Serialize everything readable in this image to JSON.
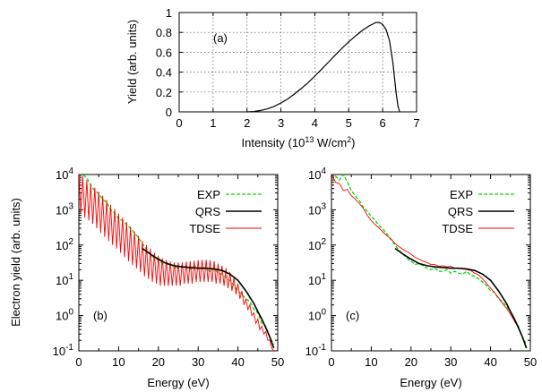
{
  "chart_data": [
    {
      "id": "a",
      "type": "line",
      "panel_label": "(a)",
      "xlabel": "Intensity (10",
      "xlabel_sup": "13",
      "xlabel_mid": " W/cm",
      "xlabel_sup2": "2",
      "xlabel_end": ")",
      "ylabel": "Yield (arb. units)",
      "xlim": [
        0,
        7
      ],
      "ylim": [
        0,
        1
      ],
      "xticks": [
        0,
        1,
        2,
        3,
        4,
        5,
        6,
        7
      ],
      "yticks": [
        0,
        0.2,
        0.4,
        0.6,
        0.8,
        1
      ],
      "ytick_labels": [
        "0",
        "0.2",
        "0.4",
        "0.6",
        "0.8",
        "1"
      ],
      "grid": true,
      "series": [
        {
          "color": "#000000",
          "x": [
            2.0,
            2.2,
            2.4,
            2.6,
            2.8,
            3.0,
            3.2,
            3.4,
            3.6,
            3.8,
            4.0,
            4.2,
            4.4,
            4.6,
            4.8,
            5.0,
            5.2,
            5.4,
            5.6,
            5.8,
            5.9,
            6.0,
            6.1,
            6.2,
            6.3,
            6.35,
            6.4,
            6.45,
            6.5
          ],
          "y": [
            0.0,
            0.004,
            0.014,
            0.03,
            0.055,
            0.09,
            0.13,
            0.18,
            0.235,
            0.295,
            0.36,
            0.43,
            0.5,
            0.57,
            0.64,
            0.705,
            0.765,
            0.82,
            0.865,
            0.9,
            0.9,
            0.88,
            0.83,
            0.72,
            0.5,
            0.34,
            0.18,
            0.06,
            0.0
          ]
        }
      ]
    },
    {
      "id": "b",
      "type": "line",
      "panel_label": "(b)",
      "xlabel": "Energy (eV)",
      "ylabel": "Electron yield (arb. units)",
      "xlim": [
        0,
        50
      ],
      "ylim": [
        0.1,
        10000
      ],
      "yscale": "log",
      "xticks": [
        0,
        10,
        20,
        30,
        40,
        50
      ],
      "ytick_base": "10",
      "ytick_exponents": [
        "-1",
        "0",
        "1",
        "2",
        "3",
        "4"
      ],
      "legend_placement": "top-right",
      "series": [
        {
          "name": "EXP",
          "color": "#00dd00",
          "x": [
            0,
            1,
            2,
            3,
            4,
            5,
            6,
            7,
            8,
            9,
            10,
            11,
            12,
            13,
            14,
            15,
            16,
            17,
            18,
            19,
            20,
            21,
            22,
            23,
            24,
            25,
            26,
            27,
            28,
            29,
            30,
            31,
            32,
            33,
            34,
            35,
            36,
            37,
            38,
            39,
            40,
            41,
            42,
            43,
            44,
            45,
            46,
            47,
            48,
            49
          ],
          "y": [
            12000,
            10000,
            8000,
            5000,
            3500,
            2800,
            2000,
            1600,
            1000,
            800,
            550,
            500,
            380,
            300,
            220,
            160,
            110,
            75,
            55,
            42,
            38,
            30,
            32,
            28,
            24,
            22,
            26,
            24,
            20,
            26,
            22,
            24,
            20,
            18,
            22,
            16,
            15,
            12,
            10,
            7,
            5,
            4,
            3,
            2.5,
            1.5,
            1.2,
            0.6,
            0.5,
            0.25,
            0.15
          ]
        },
        {
          "name": "QRS",
          "color": "#000000",
          "x": [
            16,
            18,
            20,
            22,
            24,
            26,
            28,
            30,
            32,
            34,
            36,
            38,
            40,
            42,
            44,
            45,
            46,
            47,
            48,
            49
          ],
          "y": [
            80,
            55,
            40,
            30,
            26,
            24,
            23,
            22,
            22,
            21,
            19,
            15,
            10,
            5,
            2.2,
            1.3,
            0.8,
            0.45,
            0.25,
            0.12
          ]
        },
        {
          "name": "TDSE",
          "color": "#ff0000",
          "x": [
            0,
            0.5,
            1,
            1.5,
            2,
            2.5,
            3,
            3.5,
            4,
            4.5,
            5,
            5.5,
            6,
            6.5,
            7,
            7.5,
            8,
            8.5,
            9,
            9.5,
            10,
            10.5,
            11,
            11.5,
            12,
            12.5,
            13,
            13.5,
            14,
            14.5,
            15,
            15.5,
            16,
            16.5,
            17,
            17.5,
            18,
            18.5,
            19,
            19.5,
            20,
            20.5,
            21,
            21.5,
            22,
            22.5,
            23,
            23.5,
            24,
            24.5,
            25,
            25.5,
            26,
            26.5,
            27,
            27.5,
            28,
            28.5,
            29,
            29.5,
            30,
            30.5,
            31,
            31.5,
            32,
            32.5,
            33,
            33.5,
            34,
            34.5,
            35,
            35.5,
            36,
            36.5,
            37,
            37.5,
            38,
            38.5,
            39,
            39.5,
            40,
            40.5,
            41,
            41.5,
            42,
            42.5,
            43,
            43.5,
            44,
            44.5,
            45,
            45.5,
            46,
            46.5,
            47,
            47.5,
            48,
            48.5,
            49
          ],
          "y": [
            14000,
            800,
            9000,
            600,
            7000,
            500,
            5500,
            400,
            4200,
            300,
            3300,
            220,
            2500,
            170,
            1900,
            130,
            1400,
            100,
            1050,
            80,
            780,
            60,
            600,
            45,
            450,
            35,
            330,
            27,
            240,
            22,
            180,
            17,
            130,
            13,
            100,
            11,
            80,
            9,
            60,
            8,
            50,
            7,
            42,
            7,
            38,
            7,
            34,
            7,
            32,
            7,
            32,
            7,
            32,
            8,
            34,
            8,
            35,
            8,
            36,
            9,
            37,
            9,
            38,
            9,
            38,
            9,
            37,
            9,
            35,
            8,
            30,
            8,
            26,
            7,
            22,
            6,
            17,
            5,
            12,
            4,
            8,
            3,
            5,
            2,
            3,
            1.5,
            2,
            1,
            1.2,
            0.6,
            0.8,
            0.4,
            0.5,
            0.3,
            0.35,
            0.2,
            0.2,
            0.12,
            0.1
          ]
        }
      ]
    },
    {
      "id": "c",
      "type": "line",
      "panel_label": "(c)",
      "xlabel": "Energy (eV)",
      "xlim": [
        0,
        50
      ],
      "ylim": [
        0.1,
        10000
      ],
      "yscale": "log",
      "xticks": [
        0,
        10,
        20,
        30,
        40,
        50
      ],
      "ytick_base": "10",
      "ytick_exponents": [
        "-1",
        "0",
        "1",
        "2",
        "3",
        "4"
      ],
      "legend_placement": "top-right",
      "series": [
        {
          "name": "EXP",
          "color": "#00dd00",
          "x": [
            0,
            1,
            2,
            3,
            4,
            5,
            6,
            7,
            8,
            9,
            10,
            11,
            12,
            13,
            14,
            15,
            16,
            17,
            18,
            19,
            20,
            21,
            22,
            23,
            24,
            25,
            26,
            27,
            28,
            29,
            30,
            31,
            32,
            33,
            34,
            35,
            36,
            37,
            38,
            39,
            40,
            41,
            42,
            43,
            44,
            45,
            46,
            47,
            48,
            49
          ],
          "y": [
            12000,
            9000,
            7000,
            10000,
            6000,
            3500,
            2500,
            1800,
            1200,
            900,
            650,
            500,
            350,
            280,
            200,
            140,
            100,
            70,
            55,
            42,
            35,
            28,
            30,
            26,
            22,
            20,
            22,
            18,
            18,
            20,
            16,
            18,
            16,
            15,
            18,
            14,
            13,
            11,
            9,
            7,
            5,
            4.5,
            3,
            2.5,
            1.8,
            1.3,
            0.8,
            0.5,
            0.25,
            0.15
          ]
        },
        {
          "name": "QRS",
          "color": "#000000",
          "x": [
            16,
            18,
            20,
            22,
            24,
            26,
            28,
            30,
            32,
            34,
            36,
            38,
            40,
            42,
            44,
            45,
            46,
            47,
            48,
            49
          ],
          "y": [
            80,
            55,
            40,
            30,
            26,
            24,
            23,
            22,
            22,
            21,
            19,
            15,
            10,
            5,
            2.2,
            1.3,
            0.8,
            0.45,
            0.25,
            0.12
          ]
        },
        {
          "name": "TDSE",
          "color": "#ff0000",
          "x": [
            0,
            1,
            2,
            3,
            4,
            5,
            6,
            7,
            8,
            9,
            10,
            11,
            12,
            13,
            14,
            15,
            16,
            17,
            18,
            19,
            20,
            21,
            22,
            23,
            24,
            25,
            26,
            27,
            28,
            29,
            30,
            31,
            32,
            33,
            34,
            35,
            36,
            37,
            38,
            39,
            40,
            41,
            42,
            43,
            44,
            45,
            46,
            47,
            48,
            49
          ],
          "y": [
            11000,
            6000,
            5500,
            3500,
            3800,
            2500,
            2000,
            1500,
            1100,
            700,
            500,
            380,
            300,
            230,
            180,
            150,
            110,
            90,
            75,
            65,
            55,
            45,
            40,
            35,
            32,
            28,
            28,
            25,
            26,
            24,
            25,
            22,
            22,
            21,
            20,
            19,
            16,
            14,
            11,
            8,
            6,
            4.5,
            3.2,
            2.2,
            1.6,
            1.1,
            0.7,
            0.45,
            0.25,
            0.12
          ]
        }
      ]
    }
  ]
}
